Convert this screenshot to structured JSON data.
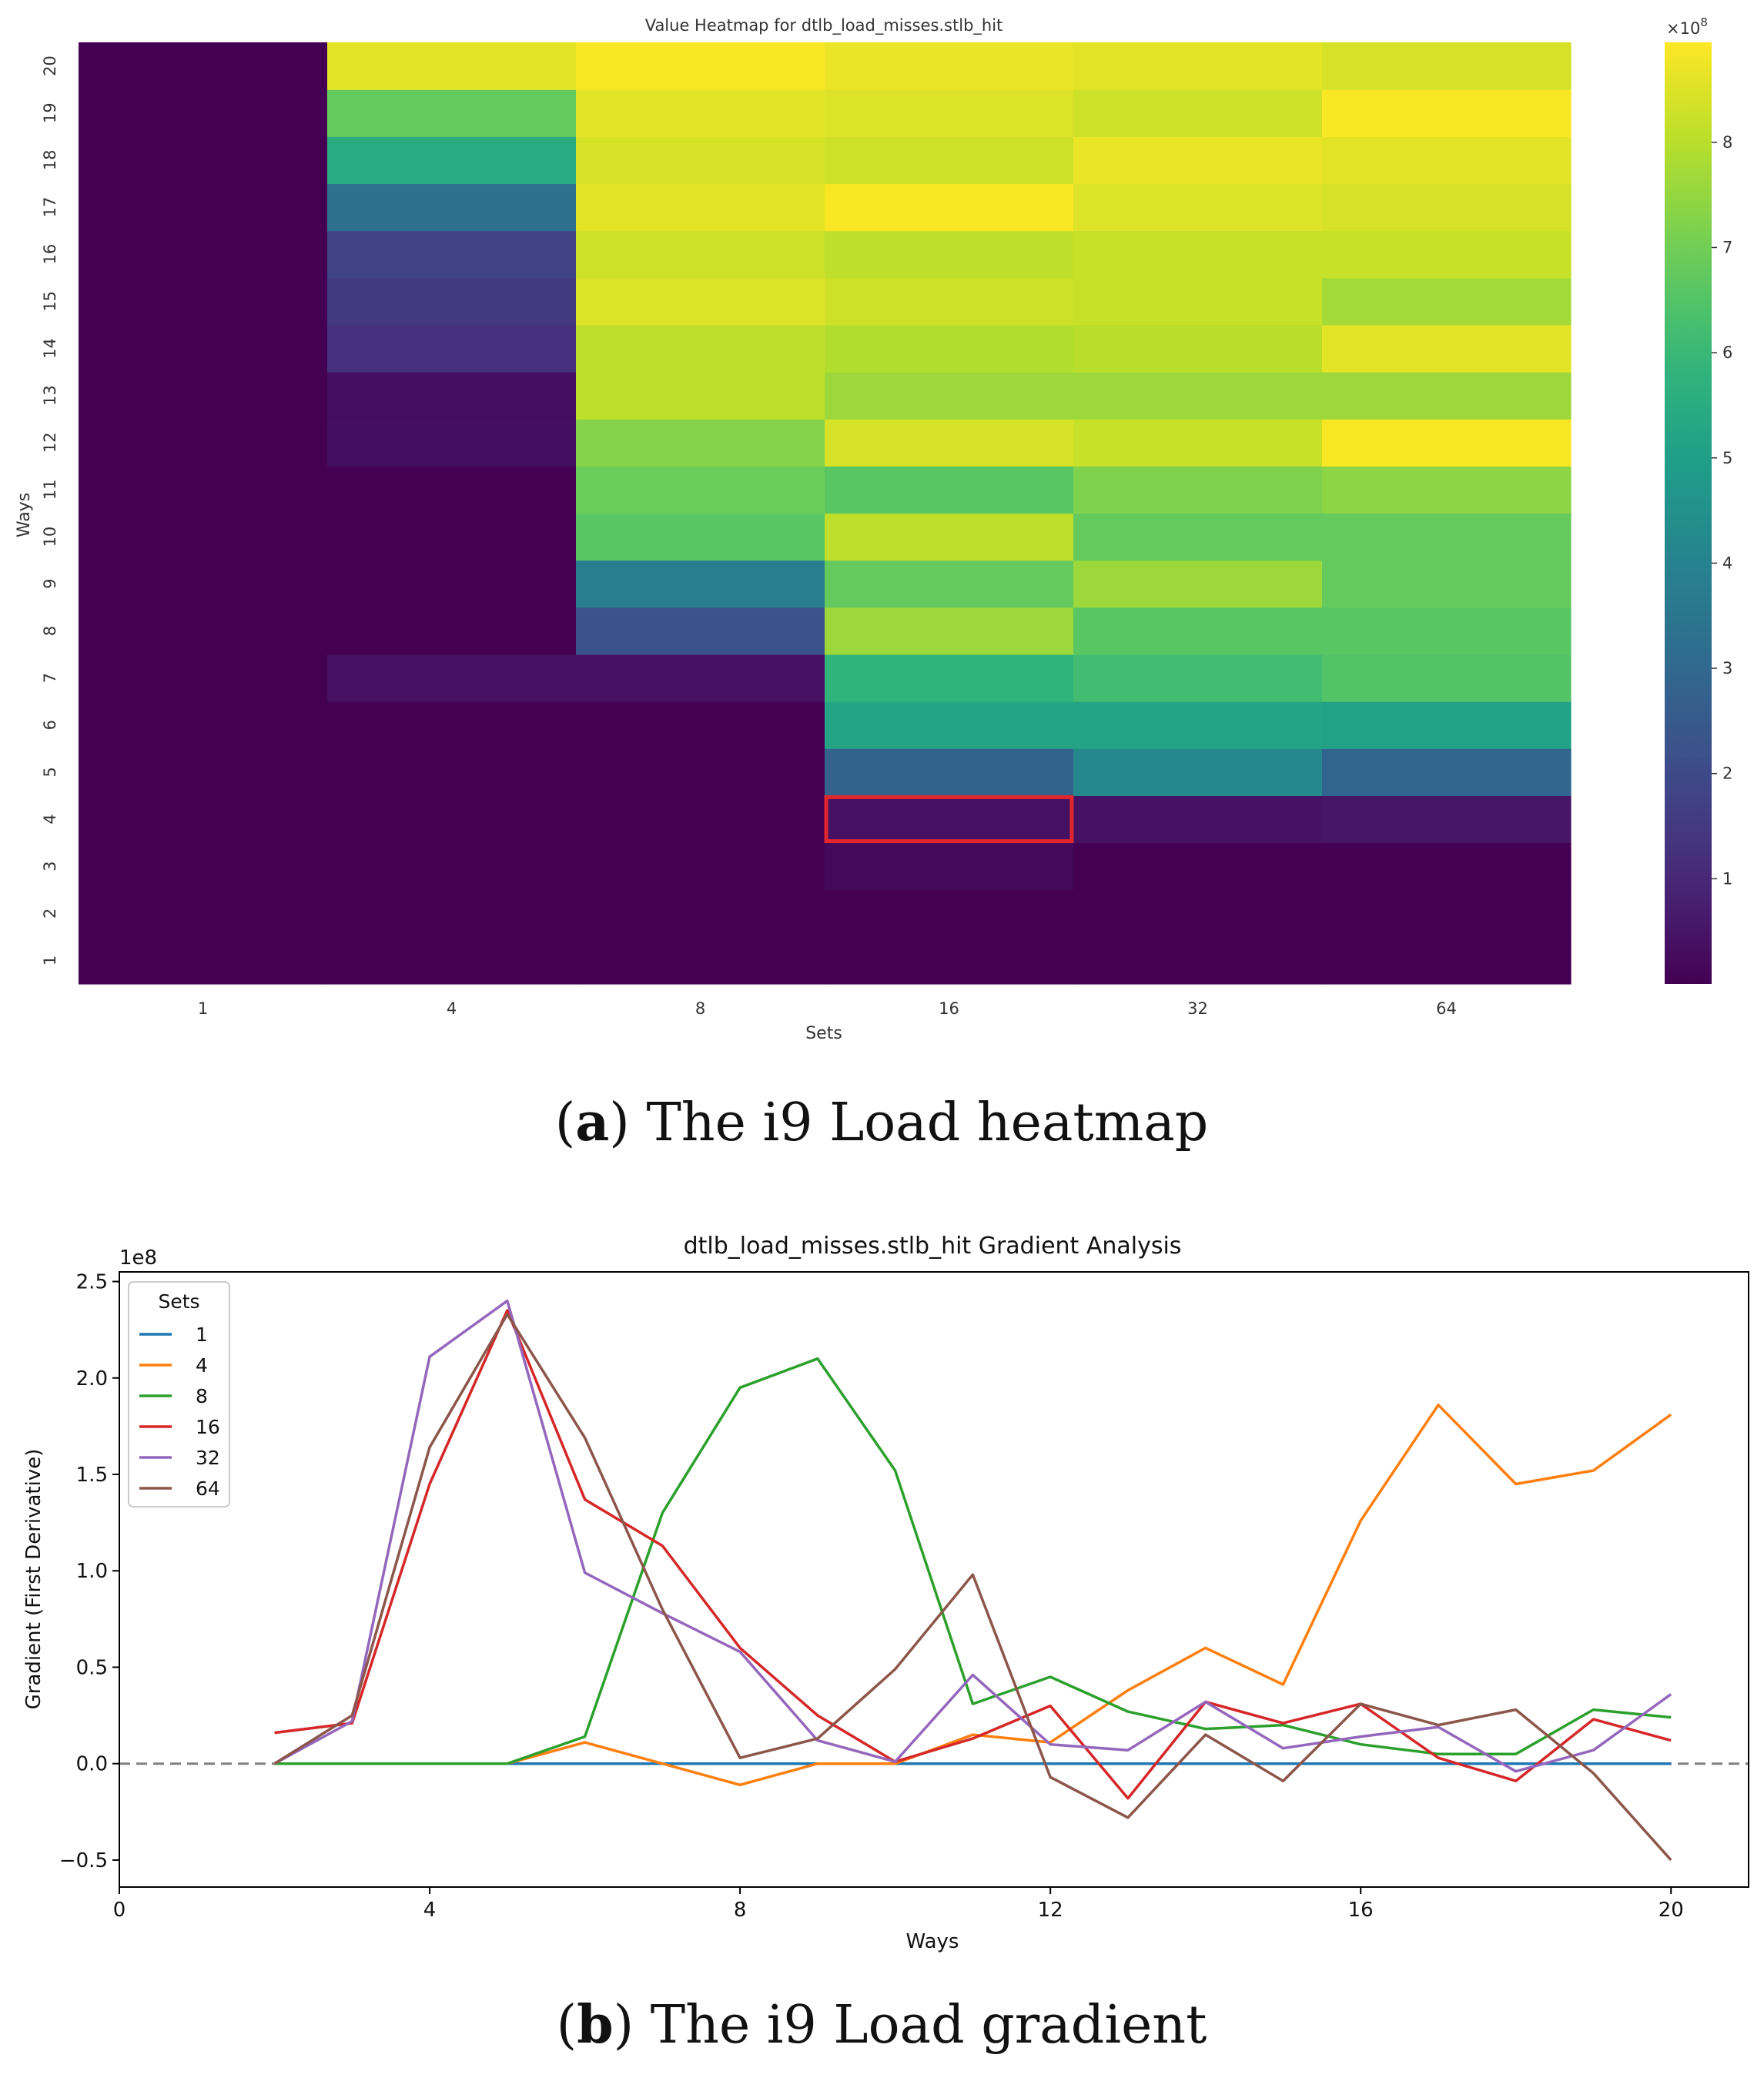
{
  "figure": {
    "caption_a": {
      "label": "a",
      "text": "The i9 Load heatmap"
    },
    "caption_b": {
      "label": "b",
      "text": "The i9 Load gradient"
    }
  },
  "chart_data": [
    {
      "type": "heatmap",
      "title": "Value Heatmap for dtlb_load_misses.stlb_hit",
      "xlabel": "Sets",
      "ylabel": "Ways",
      "x_categories": [
        "1",
        "4",
        "8",
        "16",
        "32",
        "64"
      ],
      "y_categories": [
        "1",
        "2",
        "3",
        "4",
        "5",
        "6",
        "7",
        "8",
        "9",
        "10",
        "11",
        "12",
        "13",
        "14",
        "15",
        "16",
        "17",
        "18",
        "19",
        "20"
      ],
      "values": [
        [
          0,
          0,
          0,
          0,
          0,
          0
        ],
        [
          0,
          0,
          0,
          0.002,
          0,
          0
        ],
        [
          0,
          0,
          0,
          0.2,
          0,
          0
        ],
        [
          0,
          0,
          0,
          0.4,
          0.45,
          0.5
        ],
        [
          0,
          0,
          0,
          2.8,
          4.2,
          2.9
        ],
        [
          0,
          0,
          0,
          5.2,
          5.2,
          5.1
        ],
        [
          0,
          0.4,
          0.4,
          5.8,
          6.2,
          6.5
        ],
        [
          0,
          0,
          2.3,
          7.6,
          6.6,
          6.6
        ],
        [
          0,
          0,
          3.8,
          6.8,
          7.6,
          6.8
        ],
        [
          0,
          0,
          6.6,
          8.1,
          6.8,
          6.8
        ],
        [
          0,
          0,
          6.9,
          6.6,
          7.2,
          7.4
        ],
        [
          0,
          0.35,
          7.3,
          8.4,
          8.2,
          8.9
        ],
        [
          0,
          0.3,
          8.1,
          7.6,
          7.6,
          7.6
        ],
        [
          0,
          1.2,
          8.1,
          7.9,
          8.0,
          8.6
        ],
        [
          0,
          1.5,
          8.5,
          8.3,
          8.2,
          7.7
        ],
        [
          0,
          1.8,
          8.3,
          8.1,
          8.2,
          8.2
        ],
        [
          0,
          3.3,
          8.6,
          8.9,
          8.5,
          8.4
        ],
        [
          0,
          5.5,
          8.4,
          8.3,
          8.7,
          8.6
        ],
        [
          0,
          6.8,
          8.6,
          8.5,
          8.3,
          8.9
        ],
        [
          0,
          8.6,
          8.9,
          8.7,
          8.6,
          8.4
        ]
      ],
      "colorbar": {
        "ticks": [
          1,
          2,
          3,
          4,
          5,
          6,
          7,
          8
        ],
        "range": [
          0,
          8.95
        ],
        "multiplier_base": "×10",
        "multiplier_exp": "8"
      },
      "colormap": "viridis",
      "highlight": {
        "x": "16",
        "y": "4",
        "color": "#e3262b"
      }
    },
    {
      "type": "line",
      "title": "dtlb_load_misses.stlb_hit Gradient Analysis",
      "xlabel": "Ways",
      "ylabel": "Gradient (First Derivative)",
      "y_offset_label": "1e8",
      "xlim": [
        0,
        21
      ],
      "ylim": [
        -0.64,
        2.55
      ],
      "xticks": [
        0,
        4,
        8,
        12,
        16,
        20
      ],
      "yticks": [
        -0.5,
        0.0,
        0.5,
        1.0,
        1.5,
        2.0,
        2.5
      ],
      "ytick_labels": [
        "−0.5",
        "0.0",
        "0.5",
        "1.0",
        "1.5",
        "2.0",
        "2.5"
      ],
      "zero_line": {
        "y": 0,
        "style": "dashed",
        "color": "#808080"
      },
      "legend": {
        "title": "Sets",
        "position": "top-left"
      },
      "x": [
        2,
        3,
        4,
        5,
        6,
        7,
        8,
        9,
        10,
        11,
        12,
        13,
        14,
        15,
        16,
        17,
        18,
        19,
        20
      ],
      "series": [
        {
          "name": "1",
          "color": "#1f77b4",
          "x_start": 2,
          "values": [
            0,
            0,
            0,
            0,
            0,
            0,
            0,
            0,
            0,
            0,
            0,
            0,
            0,
            0,
            0,
            0,
            0,
            0,
            0
          ]
        },
        {
          "name": "4",
          "color": "#ff7f0e",
          "x_start": 2,
          "values": [
            0,
            0,
            0,
            0,
            0.11,
            0,
            -0.11,
            0,
            0,
            0.15,
            0.11,
            0.38,
            0.6,
            0.41,
            1.26,
            1.86,
            1.45,
            1.52,
            1.81
          ]
        },
        {
          "name": "8",
          "color": "#2ca02c",
          "x_start": 2,
          "values": [
            0,
            0,
            0,
            0,
            0.14,
            1.3,
            1.95,
            2.1,
            1.52,
            0.31,
            0.45,
            0.27,
            0.18,
            0.2,
            0.1,
            0.05,
            0.05,
            0.28,
            0.24
          ]
        },
        {
          "name": "16",
          "color": "#d62728",
          "x_start": 2,
          "values": [
            0.16,
            0.21,
            1.45,
            2.35,
            1.37,
            1.13,
            0.6,
            0.25,
            0.01,
            0.13,
            0.3,
            -0.18,
            0.32,
            0.21,
            0.31,
            0.03,
            -0.09,
            0.23,
            0.12
          ]
        },
        {
          "name": "32",
          "color": "#9467bd",
          "x_start": 2,
          "values": [
            0,
            0.22,
            2.11,
            2.4,
            0.99,
            0.78,
            0.58,
            0.12,
            0.01,
            0.46,
            0.1,
            0.07,
            0.32,
            0.08,
            0.14,
            0.19,
            -0.04,
            0.07,
            0.36
          ]
        },
        {
          "name": "64",
          "color": "#8c564b",
          "x_start": 2,
          "values": [
            0,
            0.25,
            1.64,
            2.33,
            1.69,
            0.8,
            0.03,
            0.13,
            0.49,
            0.98,
            -0.07,
            -0.28,
            0.15,
            -0.09,
            0.31,
            0.2,
            0.28,
            -0.05,
            -0.5
          ]
        }
      ]
    }
  ]
}
